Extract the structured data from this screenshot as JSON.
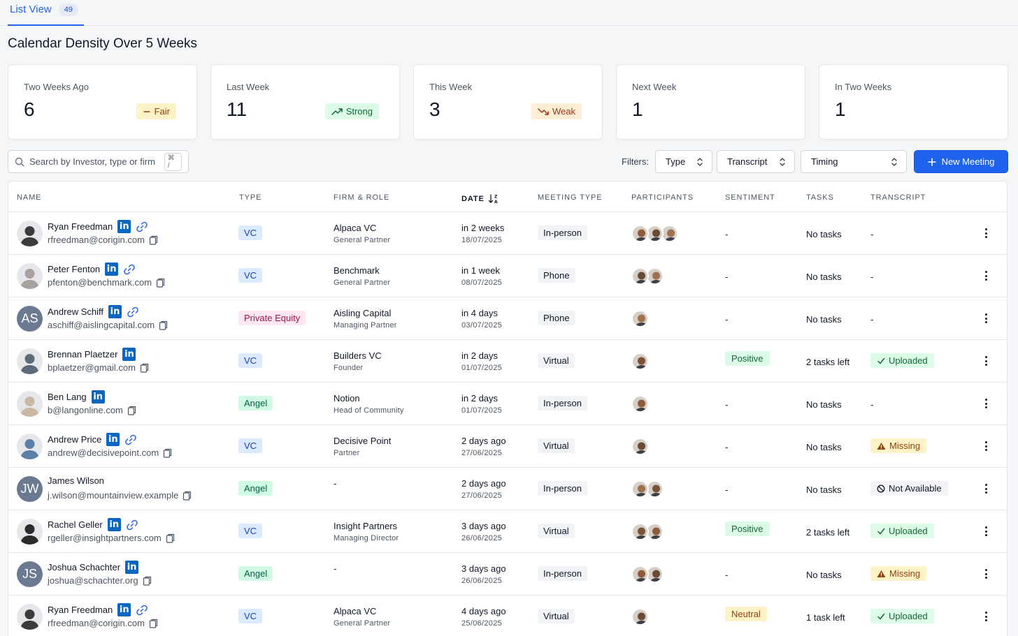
{
  "tab": {
    "label": "List View",
    "count": "49"
  },
  "page_title": "Calendar Density Over 5 Weeks",
  "cards": [
    {
      "label": "Two Weeks Ago",
      "value": "6",
      "badge": "Fair",
      "badge_kind": "fair",
      "icon": "minus-icon"
    },
    {
      "label": "Last Week",
      "value": "11",
      "badge": "Strong",
      "badge_kind": "strong",
      "icon": "trending-up-icon"
    },
    {
      "label": "This Week",
      "value": "3",
      "badge": "Weak",
      "badge_kind": "weak",
      "icon": "trending-down-icon"
    },
    {
      "label": "Next Week",
      "value": "1",
      "badge": "",
      "badge_kind": ""
    },
    {
      "label": "In Two Weeks",
      "value": "1",
      "badge": "",
      "badge_kind": ""
    }
  ],
  "search": {
    "placeholder": "Search by Investor, type or firm",
    "shortcut": "⌘ /"
  },
  "filters": {
    "label": "Filters:",
    "selects": [
      {
        "label": "Type"
      },
      {
        "label": "Transcript"
      },
      {
        "label": "Timing"
      }
    ]
  },
  "new_meeting_label": "New Meeting",
  "columns": [
    "Name",
    "Type",
    "Firm & Role",
    "Date",
    "Meeting Type",
    "Participants",
    "Sentiment",
    "Tasks",
    "Transcript"
  ],
  "rows": [
    {
      "name": "Ryan Freedman",
      "email": "rfreedman@corigin.com",
      "linkedin": true,
      "link": true,
      "avatar": "photo",
      "avatar_color": "#3b3b3b",
      "initials": "",
      "type": "VC",
      "type_kind": "vc",
      "firm": "Alpaca VC",
      "role": "General Partner",
      "date_rel": "in 2 weeks",
      "date_abs": "18/07/2025",
      "meeting_type": "In-person",
      "participants": 3,
      "sentiment": "-",
      "sentiment_kind": "",
      "tasks": "No tasks",
      "transcript": "-",
      "transcript_kind": ""
    },
    {
      "name": "Peter Fenton",
      "email": "pfenton@benchmark.com",
      "linkedin": true,
      "link": true,
      "avatar": "photo",
      "avatar_color": "#a8a29e",
      "initials": "",
      "type": "VC",
      "type_kind": "vc",
      "firm": "Benchmark",
      "role": "General Partner",
      "date_rel": "in 1 week",
      "date_abs": "08/07/2025",
      "meeting_type": "Phone",
      "participants": 2,
      "sentiment": "-",
      "sentiment_kind": "",
      "tasks": "No tasks",
      "transcript": "-",
      "transcript_kind": ""
    },
    {
      "name": "Andrew Schiff",
      "email": "aschiff@aislingcapital.com",
      "linkedin": true,
      "link": true,
      "avatar": "initials",
      "avatar_color": "#6b7a90",
      "initials": "AS",
      "type": "Private Equity",
      "type_kind": "pe",
      "firm": "Aisling Capital",
      "role": "Managing Partner",
      "date_rel": "in 4 days",
      "date_abs": "03/07/2025",
      "meeting_type": "Phone",
      "participants": 1,
      "sentiment": "-",
      "sentiment_kind": "",
      "tasks": "No tasks",
      "transcript": "-",
      "transcript_kind": ""
    },
    {
      "name": "Brennan Plaetzer",
      "email": "bplaetzer@gmail.com",
      "linkedin": true,
      "link": false,
      "avatar": "photo",
      "avatar_color": "#5b6b7a",
      "initials": "",
      "type": "VC",
      "type_kind": "vc",
      "firm": "Builders VC",
      "role": "Founder",
      "date_rel": "in 2 days",
      "date_abs": "01/07/2025",
      "meeting_type": "Virtual",
      "participants": 1,
      "sentiment": "Positive",
      "sentiment_kind": "positive",
      "tasks": "2 tasks left",
      "transcript": "Uploaded",
      "transcript_kind": "uploaded"
    },
    {
      "name": "Ben Lang",
      "email": "b@langonline.com",
      "linkedin": true,
      "link": false,
      "avatar": "photo",
      "avatar_color": "#c9b8a6",
      "initials": "",
      "type": "Angel",
      "type_kind": "angel",
      "firm": "Notion",
      "role": "Head of Community",
      "date_rel": "in 2 days",
      "date_abs": "01/07/2025",
      "meeting_type": "In-person",
      "participants": 1,
      "sentiment": "-",
      "sentiment_kind": "",
      "tasks": "No tasks",
      "transcript": "-",
      "transcript_kind": ""
    },
    {
      "name": "Andrew Price",
      "email": "andrew@decisivepoint.com",
      "linkedin": true,
      "link": true,
      "avatar": "photo",
      "avatar_color": "#5c7fa8",
      "initials": "",
      "type": "VC",
      "type_kind": "vc",
      "firm": "Decisive Point",
      "role": "Partner",
      "date_rel": "2 days ago",
      "date_abs": "27/06/2025",
      "meeting_type": "Virtual",
      "participants": 1,
      "sentiment": "-",
      "sentiment_kind": "",
      "tasks": "No tasks",
      "transcript": "Missing",
      "transcript_kind": "missing"
    },
    {
      "name": "James Wilson",
      "email": "j.wilson@mountainview.example",
      "linkedin": false,
      "link": false,
      "avatar": "initials",
      "avatar_color": "#6b7a90",
      "initials": "JW",
      "type": "Angel",
      "type_kind": "angel",
      "firm": "-",
      "role": "",
      "date_rel": "2 days ago",
      "date_abs": "27/06/2025",
      "meeting_type": "In-person",
      "participants": 2,
      "sentiment": "-",
      "sentiment_kind": "",
      "tasks": "No tasks",
      "transcript": "Not Available",
      "transcript_kind": "na"
    },
    {
      "name": "Rachel Geller",
      "email": "rgeller@insightpartners.com",
      "linkedin": true,
      "link": true,
      "avatar": "photo",
      "avatar_color": "#2b2b2b",
      "initials": "",
      "type": "VC",
      "type_kind": "vc",
      "firm": "Insight Partners",
      "role": "Managing Director",
      "date_rel": "3 days ago",
      "date_abs": "26/06/2025",
      "meeting_type": "Virtual",
      "participants": 2,
      "sentiment": "Positive",
      "sentiment_kind": "positive",
      "tasks": "2 tasks left",
      "transcript": "Uploaded",
      "transcript_kind": "uploaded"
    },
    {
      "name": "Joshua Schachter",
      "email": "joshua@schachter.org",
      "linkedin": true,
      "link": false,
      "avatar": "initials",
      "avatar_color": "#6b7a90",
      "initials": "JS",
      "type": "Angel",
      "type_kind": "angel",
      "firm": "-",
      "role": "",
      "date_rel": "3 days ago",
      "date_abs": "26/06/2025",
      "meeting_type": "In-person",
      "participants": 2,
      "sentiment": "-",
      "sentiment_kind": "",
      "tasks": "No tasks",
      "transcript": "Missing",
      "transcript_kind": "missing"
    },
    {
      "name": "Ryan Freedman",
      "email": "rfreedman@corigin.com",
      "linkedin": true,
      "link": true,
      "avatar": "photo",
      "avatar_color": "#3b3b3b",
      "initials": "",
      "type": "VC",
      "type_kind": "vc",
      "firm": "Alpaca VC",
      "role": "General Partner",
      "date_rel": "4 days ago",
      "date_abs": "25/06/2025",
      "meeting_type": "Virtual",
      "participants": 1,
      "sentiment": "Neutral",
      "sentiment_kind": "neutral",
      "tasks": "1 task left",
      "transcript": "Uploaded",
      "transcript_kind": "uploaded"
    }
  ]
}
